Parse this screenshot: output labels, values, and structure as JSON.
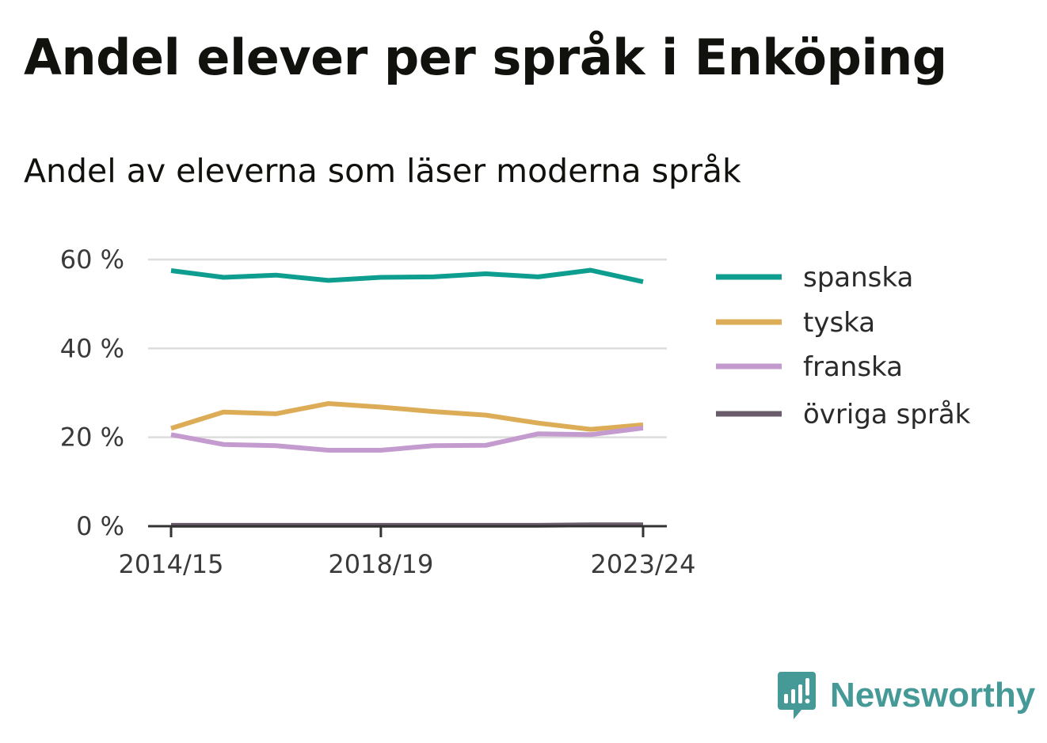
{
  "header": {
    "title": "Andel elever per språk i Enköping",
    "subtitle": "Andel av eleverna som läser moderna språk"
  },
  "brand": {
    "name": "Newsworthy",
    "icon": "newsworthy-logo-icon",
    "color": "#459a98"
  },
  "chart_data": {
    "type": "line",
    "x": [
      "2014/15",
      "2015/16",
      "2016/17",
      "2017/18",
      "2018/19",
      "2019/20",
      "2020/21",
      "2021/22",
      "2022/23",
      "2023/24"
    ],
    "x_tick_labels": [
      "2014/15",
      "2018/19",
      "2023/24"
    ],
    "series": [
      {
        "name": "spanska",
        "color": "#0e9e8f",
        "values": [
          57.5,
          56.0,
          56.5,
          55.3,
          56.0,
          56.1,
          56.8,
          56.1,
          57.6,
          55.0
        ]
      },
      {
        "name": "tyska",
        "color": "#dcac57",
        "values": [
          22.0,
          25.7,
          25.3,
          27.6,
          26.8,
          25.8,
          25.0,
          23.2,
          21.8,
          22.8
        ]
      },
      {
        "name": "franska",
        "color": "#c49bce",
        "values": [
          20.6,
          18.4,
          18.1,
          17.1,
          17.1,
          18.1,
          18.2,
          20.8,
          20.6,
          22.1
        ]
      },
      {
        "name": "övriga språk",
        "color": "#6a5c6a",
        "values": [
          0.2,
          0.2,
          0.2,
          0.2,
          0.2,
          0.2,
          0.2,
          0.2,
          0.3,
          0.3
        ]
      }
    ],
    "y_ticks": [
      {
        "value": 0,
        "label": "0 %"
      },
      {
        "value": 20,
        "label": "20 %"
      },
      {
        "value": 40,
        "label": "40 %"
      },
      {
        "value": 60,
        "label": "60 %"
      }
    ],
    "ylim": [
      0,
      60
    ],
    "grid": true,
    "legend_position": "right"
  }
}
